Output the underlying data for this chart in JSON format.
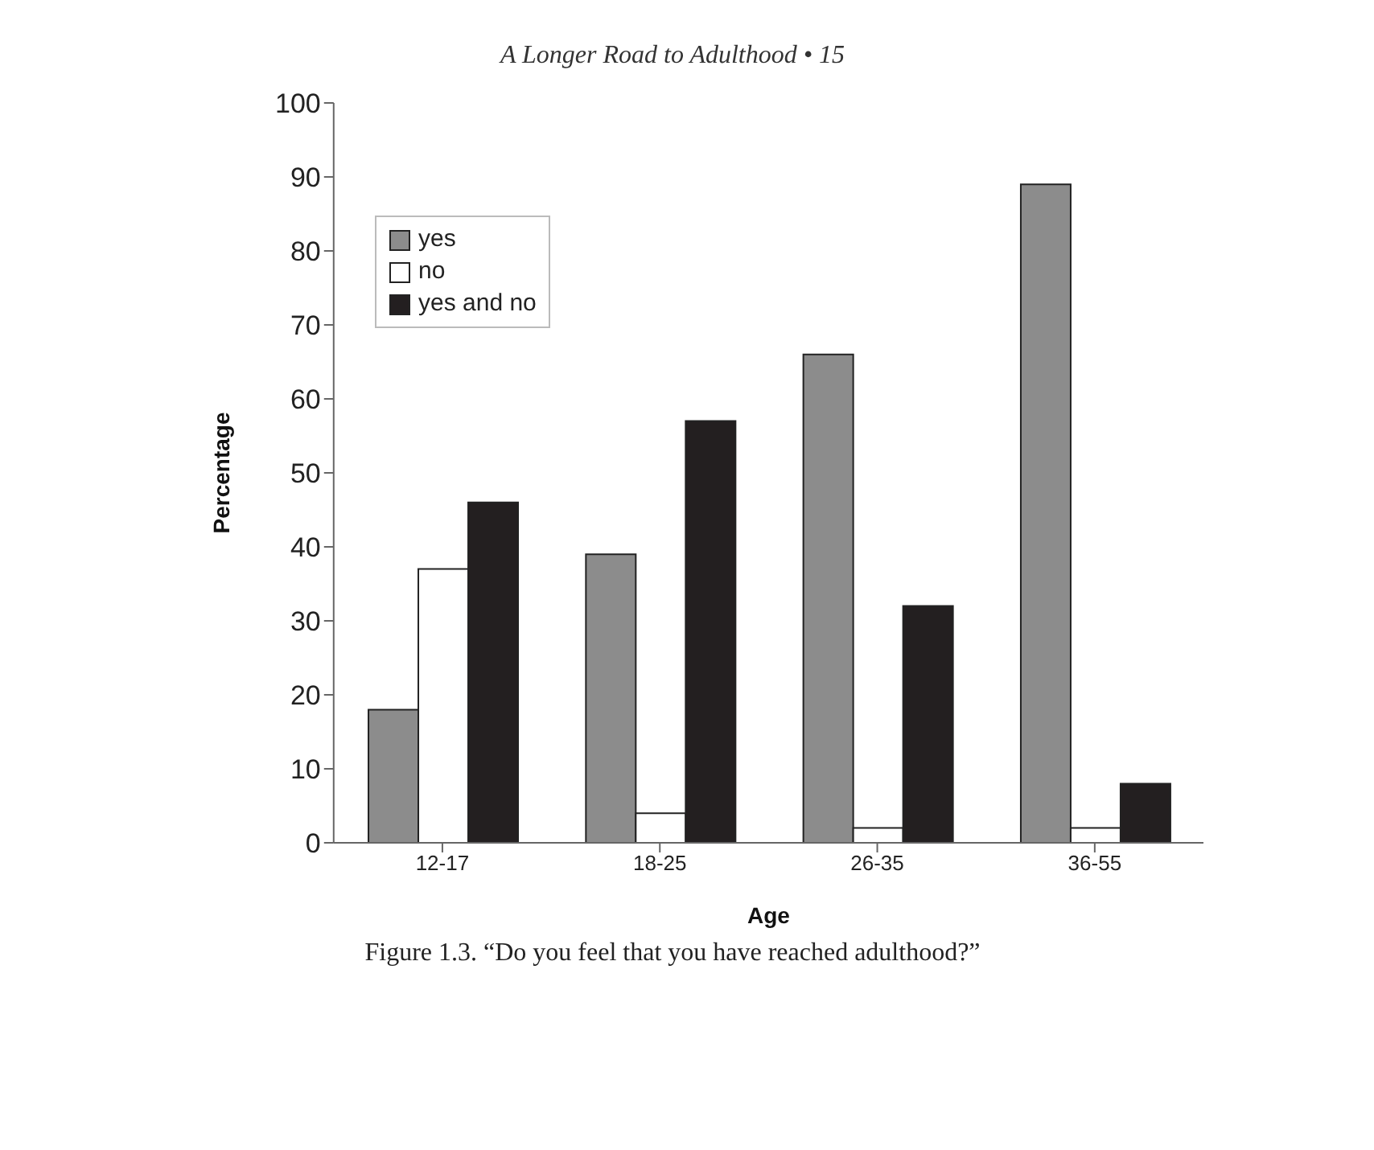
{
  "chart_data": {
    "type": "bar",
    "title": "Figure 1.3.    “Do you feel that you have reached adulthood?”",
    "annotations": [
      "A Longer Road to Adulthood  •  15"
    ],
    "xlabel": "Age",
    "ylabel": "Percentage",
    "categories": [
      "12-17",
      "18-25",
      "26-35",
      "36-55"
    ],
    "series": [
      {
        "name": "yes",
        "color": "#8c8c8c",
        "values": [
          18,
          39,
          66,
          89
        ]
      },
      {
        "name": "no",
        "color": "#ffffff",
        "values": [
          37,
          4,
          2,
          2
        ]
      },
      {
        "name": "yes and no",
        "color": "#231f20",
        "values": [
          46,
          57,
          32,
          8
        ]
      }
    ],
    "ylim": [
      0,
      100
    ],
    "yticks": [
      0,
      10,
      20,
      30,
      40,
      50,
      60,
      70,
      80,
      90,
      100
    ],
    "legend": "top left"
  }
}
